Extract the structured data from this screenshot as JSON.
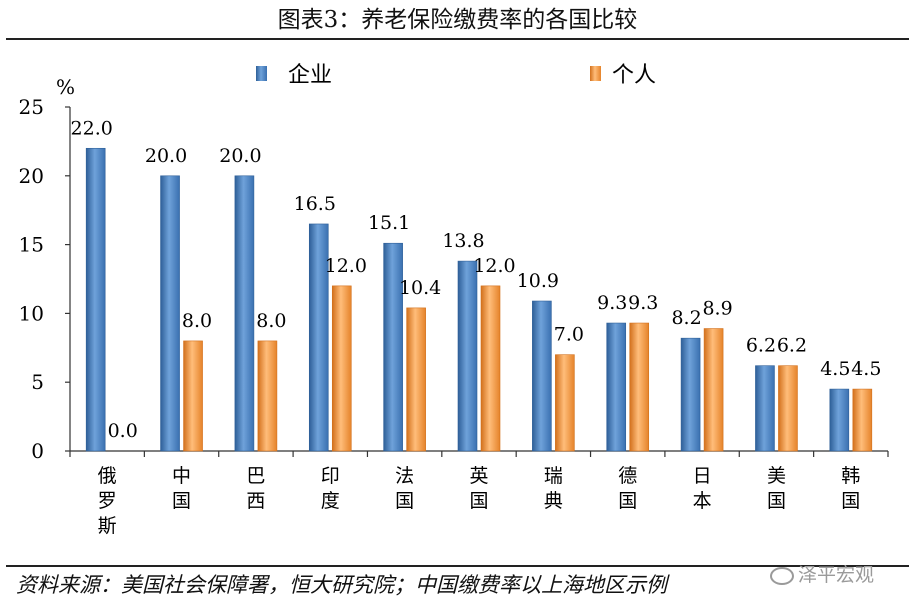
{
  "header": {
    "title": "图表3：养老保险缴费率的各国比较"
  },
  "footer": {
    "source": "资料来源：美国社会保障署，恒大研究院；中国缴费率以上海地区示例",
    "watermark": "泽平宏观"
  },
  "colors": {
    "enterprise": "#4f86c6",
    "enterprise_dark": "#2e5f98",
    "individual": "#f39a45",
    "individual_dark": "#d2701c",
    "axis": "#333333"
  },
  "chart_data": {
    "type": "bar",
    "title": "图表3：养老保险缴费率的各国比较",
    "ylabel": "%",
    "xlabel": "",
    "ylim": [
      0,
      25
    ],
    "yticks": [
      0,
      5,
      10,
      15,
      20,
      25
    ],
    "grid": false,
    "legend_position": "top",
    "categories": [
      "俄罗斯",
      "中国",
      "巴西",
      "印度",
      "法国",
      "英国",
      "瑞典",
      "德国",
      "日本",
      "美国",
      "韩国"
    ],
    "series": [
      {
        "name": "企业",
        "values": [
          22.0,
          20.0,
          20.0,
          16.5,
          15.1,
          13.8,
          10.9,
          9.3,
          8.2,
          6.2,
          4.5
        ],
        "labels": [
          "22.0",
          "20.0",
          "20.0",
          "16.5",
          "15.1",
          "13.8",
          "10.9",
          "9.3",
          "8.2",
          "6.2",
          "4.5"
        ]
      },
      {
        "name": "个人",
        "values": [
          0.0,
          8.0,
          8.0,
          12.0,
          10.4,
          12.0,
          7.0,
          9.3,
          8.9,
          6.2,
          4.5
        ],
        "labels": [
          "0.0",
          "8.0",
          "8.0",
          "12.0",
          "10.4",
          "12.0",
          "7.0",
          "9.3",
          "8.9",
          "6.2",
          "4.5"
        ]
      }
    ]
  }
}
